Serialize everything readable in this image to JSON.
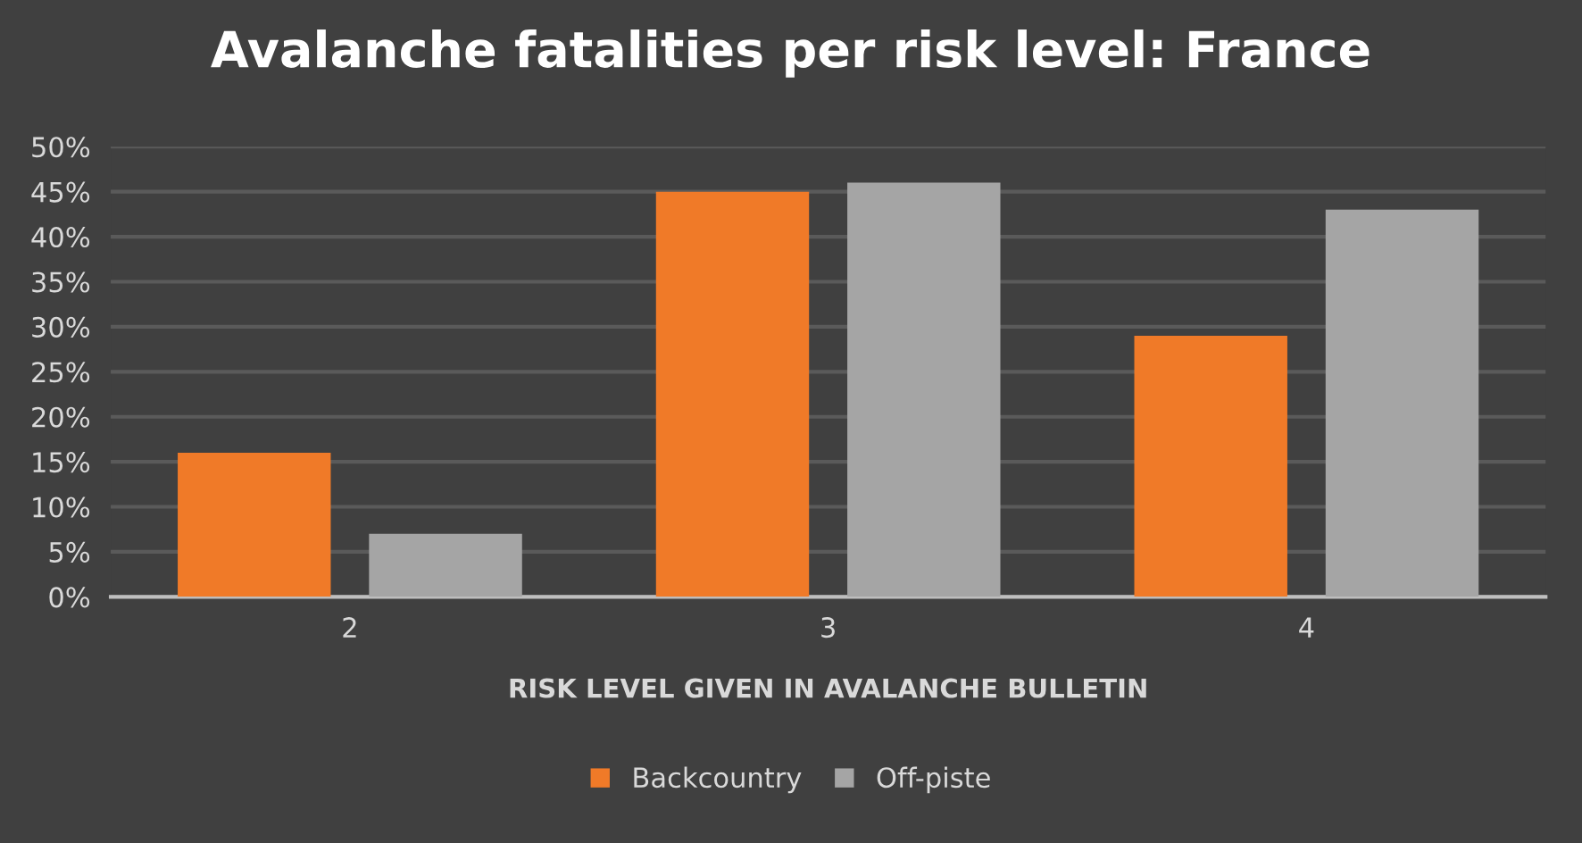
{
  "chart_data": {
    "type": "bar",
    "title": "Avalanche fatalities per risk level: France",
    "xlabel": "RISK LEVEL GIVEN IN AVALANCHE BULLETIN",
    "categories": [
      "2",
      "3",
      "4"
    ],
    "series": [
      {
        "name": "Backcountry",
        "color": "#f07a28",
        "values": [
          16,
          45,
          29
        ]
      },
      {
        "name": "Off-piste",
        "color": "#a5a5a5",
        "values": [
          7,
          46,
          43
        ]
      }
    ],
    "ylim": [
      0,
      50
    ],
    "yticks": [
      {
        "value": 0,
        "label": "0%"
      },
      {
        "value": 5,
        "label": "5%"
      },
      {
        "value": 10,
        "label": "10%"
      },
      {
        "value": 15,
        "label": "15%"
      },
      {
        "value": 20,
        "label": "20%"
      },
      {
        "value": 25,
        "label": "25%"
      },
      {
        "value": 30,
        "label": "30%"
      },
      {
        "value": 35,
        "label": "35%"
      },
      {
        "value": 40,
        "label": "40%"
      },
      {
        "value": 45,
        "label": "45%"
      },
      {
        "value": 50,
        "label": "50%"
      }
    ],
    "grid": "y",
    "legend": "bottom"
  }
}
